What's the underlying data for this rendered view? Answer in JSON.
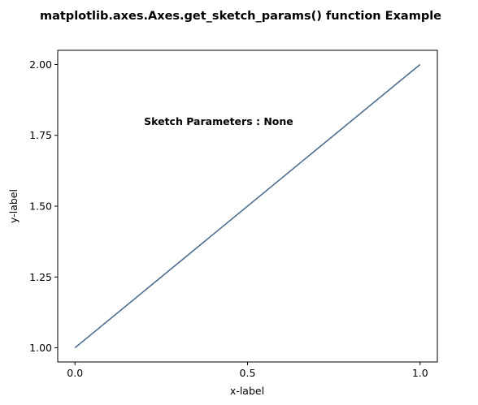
{
  "chart_data": {
    "type": "line",
    "title": "matplotlib.axes.Axes.get_sketch_params() function Example",
    "xlabel": "x-label",
    "ylabel": "y-label",
    "xlim": [
      -0.05,
      1.05
    ],
    "ylim": [
      0.95,
      2.05
    ],
    "xticks": [
      0.0,
      0.5,
      1.0
    ],
    "xtick_labels": [
      "0.0",
      "0.5",
      "1.0"
    ],
    "yticks": [
      1.0,
      1.25,
      1.5,
      1.75,
      2.0
    ],
    "ytick_labels": [
      "1.00",
      "1.25",
      "1.50",
      "1.75",
      "2.00"
    ],
    "grid": false,
    "series": [
      {
        "x": [
          0,
          1
        ],
        "y": [
          1,
          2
        ],
        "color": "#4f6e8f"
      }
    ],
    "annotation": {
      "text": "Sketch Parameters : None",
      "x": 0.2,
      "y": 1.8
    }
  }
}
